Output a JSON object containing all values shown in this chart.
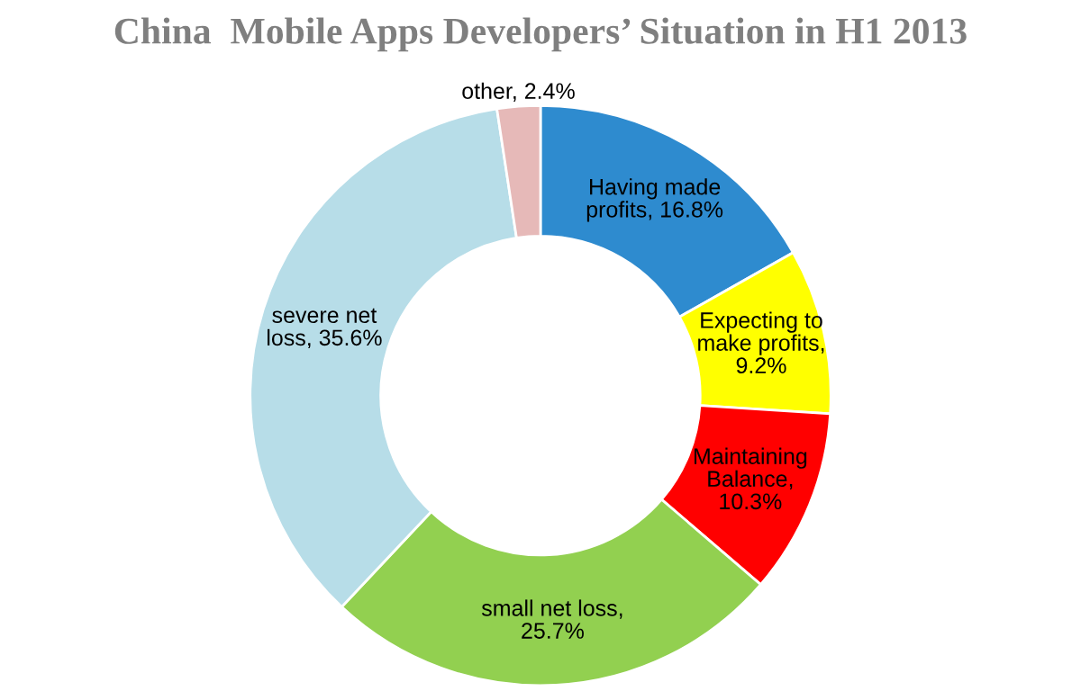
{
  "chart_data": {
    "type": "donut",
    "title": "China  Mobile Apps Developers’ Situation in H1 2013",
    "categories": [
      "Having made\nprofits, 16.8%",
      "Expecting to\nmake profits,\n9.2%",
      "Maintaining\nBalance,\n10.3%",
      "small net loss,\n25.7%",
      "severe net\nloss, 35.6%",
      "other, 2.4%"
    ],
    "values": [
      16.8,
      9.2,
      10.3,
      25.7,
      35.6,
      2.4
    ],
    "colors": [
      "#2e8bcf",
      "#ffff00",
      "#ff0000",
      "#92d050",
      "#b7dde8",
      "#e6b9b8"
    ]
  }
}
